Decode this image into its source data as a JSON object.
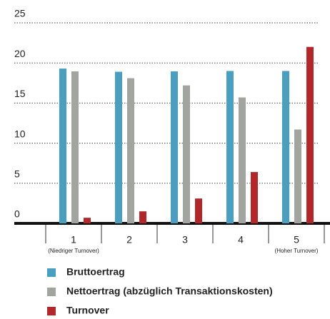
{
  "chart_data": {
    "type": "bar",
    "categories": [
      "1",
      "2",
      "3",
      "4",
      "5"
    ],
    "category_notes": [
      "(Niedriger Turnover)",
      null,
      null,
      null,
      "(Hoher Turnover)"
    ],
    "series": [
      {
        "name": "Bruttoertrag",
        "color": "#4a9fc1",
        "values": [
          19.3,
          18.9,
          18.95,
          19.0,
          19.0
        ]
      },
      {
        "name": "Nettoertrag (abzüglich Transaktionskosten)",
        "color": "#a2a59f",
        "values": [
          18.95,
          18.1,
          17.2,
          15.7,
          11.7
        ]
      },
      {
        "name": "Turnover",
        "color": "#b3272b",
        "values": [
          0.7,
          1.5,
          3.1,
          6.4,
          22.0
        ]
      }
    ],
    "ylim": [
      0,
      25
    ],
    "yticks": [
      0,
      5,
      10,
      15,
      20,
      25
    ],
    "grid": true
  }
}
